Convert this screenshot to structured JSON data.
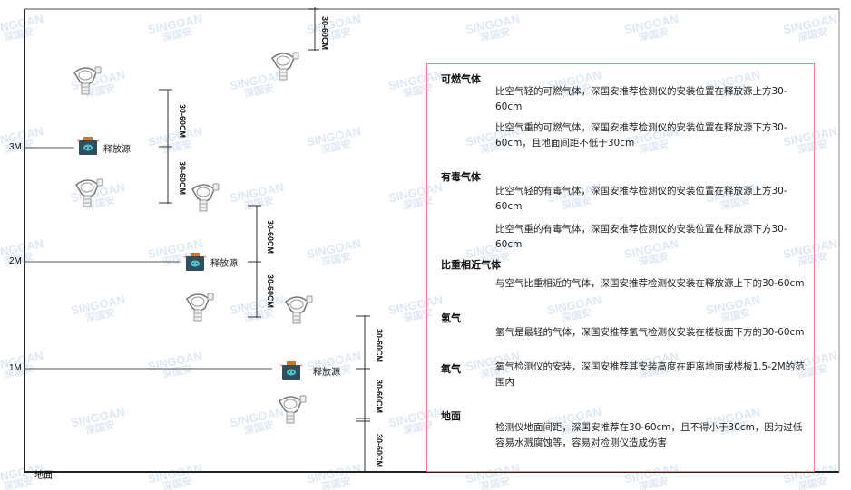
{
  "watermark": {
    "brand": "SINGOAN",
    "cn": "深国安"
  },
  "levels": [
    "3M",
    "2M",
    "1M"
  ],
  "ground_label": "地面",
  "dimension_label": "30-60CM",
  "source_label": "释放源",
  "panel": {
    "sections": [
      {
        "heading": "可燃气体",
        "paragraphs": [
          "比空气轻的可燃气体，深国安推荐检测仪的安装位置在释放源上方30-60cm",
          "比空气重的可燃气体，深国安推荐检测仪的安装位置在释放源下方30-60cm，且地面间距不低于30cm"
        ]
      },
      {
        "heading": "有毒气体",
        "paragraphs": [
          "比空气轻的有毒气体，深国安推荐检测仪的安装位置在释放源上方30-60cm",
          "比空气重的有毒气体，深国安推荐检测仪的安装位置在释放源下方30-60cm"
        ]
      },
      {
        "heading": "比重相近气体",
        "paragraphs": [
          "与空气比重相近的气体，深国安推荐检测仪安装在释放源上下的30-60cm"
        ]
      },
      {
        "heading": "氢气",
        "paragraphs": [
          "氢气是最轻的气体，深国安推荐氢气检测仪安装在楼板面下方的30-60cm"
        ]
      },
      {
        "heading": "氧气",
        "paragraphs": [
          "氧气检测仪的安装，深国安推荐其安装高度在距离地面或楼板1.5-2M的范围内"
        ]
      },
      {
        "heading": "地面",
        "paragraphs": [
          "检测仪地面间距，深国安推荐在30-60cm，且不得小于30cm，因为过低容易水溅腐蚀等，容易对检测仪造成伤害"
        ]
      }
    ]
  },
  "colors": {
    "panel_border": "#e58a8a",
    "source_body": "#2f4f5f",
    "source_cap": "#c87a2a",
    "source_face": "#4ec3c3"
  }
}
